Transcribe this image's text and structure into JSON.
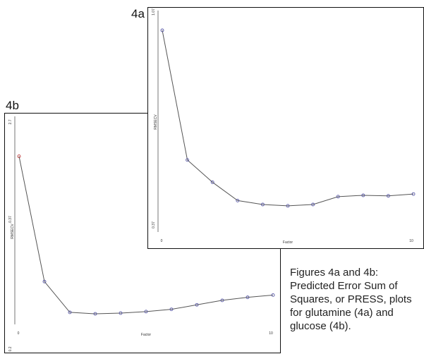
{
  "figure_labels": {
    "a": "4a",
    "b": "4b"
  },
  "caption": "Figures 4a and 4b:\nPredicted Error Sum of\nSquares, or PRESS, plots\nfor glutamine (4a) and\nglucose (4b).",
  "colors": {
    "line": "#555555",
    "marker": "#5a5aa8",
    "first_marker_b": "#c04040",
    "border": "#111111"
  },
  "chart_data": [
    {
      "id": "4a",
      "type": "line",
      "title": "",
      "xlabel": "Factor",
      "ylabel": "RMSECV",
      "x_ticks": [
        "0",
        "10"
      ],
      "y_ticks": [
        "0.37",
        "1.07"
      ],
      "xlim": [
        0,
        10
      ],
      "ylim": [
        0.37,
        1.07
      ],
      "grid": false,
      "series": [
        {
          "x": [
            0,
            1,
            2,
            3,
            4,
            5,
            6,
            7,
            8,
            9,
            10
          ],
          "y": [
            1.07,
            0.575,
            0.49,
            0.42,
            0.405,
            0.4,
            0.405,
            0.435,
            0.44,
            0.438,
            0.445
          ]
        }
      ]
    },
    {
      "id": "4b",
      "type": "line",
      "title": "",
      "xlabel": "Factor",
      "ylabel": "RMSECV",
      "x_ticks": [
        "0",
        "10"
      ],
      "y_ticks": [
        "0.2",
        "0.37",
        "2.7"
      ],
      "xlim": [
        0,
        10
      ],
      "ylim": [
        0.2,
        2.7
      ],
      "grid": false,
      "series": [
        {
          "x": [
            0,
            1,
            2,
            3,
            4,
            5,
            6,
            7,
            8,
            9,
            10
          ],
          "y": [
            2.45,
            0.78,
            0.37,
            0.35,
            0.36,
            0.38,
            0.41,
            0.47,
            0.53,
            0.57,
            0.6
          ]
        }
      ]
    }
  ]
}
